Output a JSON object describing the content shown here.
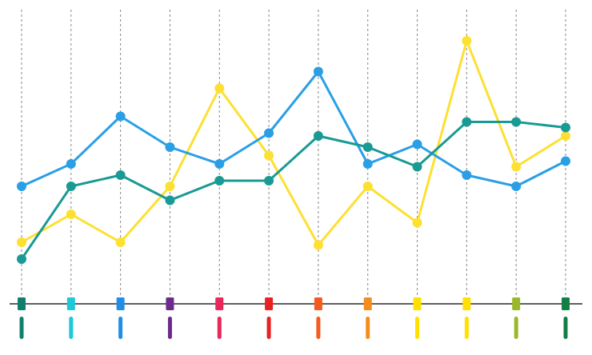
{
  "chart_data": {
    "type": "line",
    "categories": [
      null,
      null,
      null,
      null,
      null,
      null,
      null,
      null,
      null,
      null,
      null,
      null
    ],
    "category_colors": [
      "#127f6c",
      "#1ec8d8",
      "#1e8ee8",
      "#6b2a8c",
      "#e8285a",
      "#e82222",
      "#f55a1e",
      "#f58c1e",
      "#ffe000",
      "#ffe000",
      "#9ab82a",
      "#128044"
    ],
    "series": [
      {
        "color": "#fde032",
        "values": [
          22,
          32,
          22,
          42,
          77,
          53,
          21,
          42,
          29,
          94,
          49,
          60
        ]
      },
      {
        "color": "#2a9fe6",
        "values": [
          42,
          50,
          67,
          56,
          50,
          61,
          83,
          50,
          57,
          46,
          42,
          51
        ]
      },
      {
        "color": "#1a9a94",
        "values": [
          16,
          42,
          46,
          37,
          44,
          44,
          60,
          56,
          49,
          65,
          65,
          63
        ]
      }
    ],
    "ylim": [
      0,
      100
    ],
    "grid": true
  }
}
